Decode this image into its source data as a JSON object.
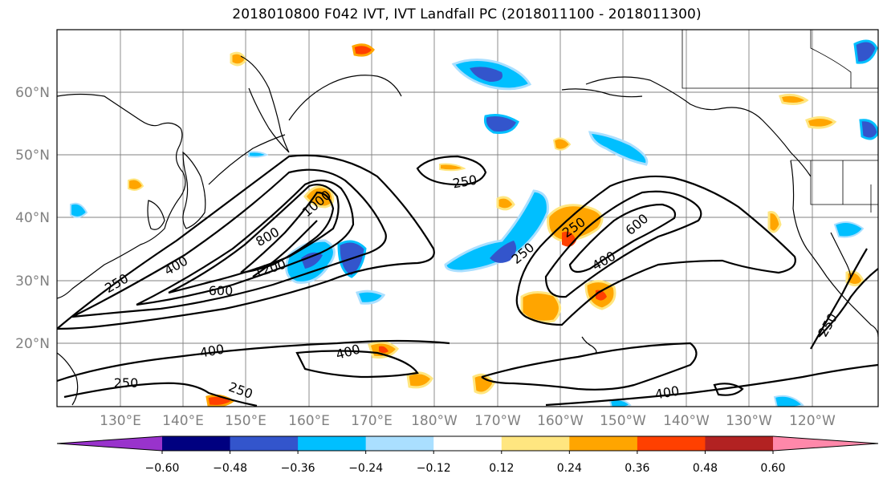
{
  "title": "2018010800 F042 IVT, IVT Landfall PC (2018011100 - 2018011300)",
  "lat_labels": [
    "60°N",
    "50°N",
    "40°N",
    "30°N",
    "20°N"
  ],
  "lon_labels": [
    "130°E",
    "140°E",
    "150°E",
    "160°E",
    "170°E",
    "180°W",
    "170°W",
    "160°W",
    "150°W",
    "140°W",
    "130°W",
    "120°W"
  ],
  "colorbar": {
    "ticks": [
      "−0.60",
      "−0.48",
      "−0.36",
      "−0.24",
      "−0.12",
      "0.12",
      "0.24",
      "0.36",
      "0.48",
      "0.60"
    ],
    "colors": [
      "#9933cc",
      "#000080",
      "#3355cc",
      "#00bfff",
      "#aadfff",
      "#ffffff",
      "#ffe680",
      "#ffa500",
      "#ff4000",
      "#b22222",
      "#ff88aa"
    ]
  },
  "ivt_contour_labels": [
    "250",
    "400",
    "600",
    "800",
    "1000",
    "1200",
    "250",
    "400",
    "600",
    "250",
    "250",
    "400",
    "400",
    "250",
    "250",
    "400",
    "250"
  ],
  "colors": {
    "contour": "#000000",
    "grid": "#808080",
    "coast": "#000000",
    "negative_light": "#00bfff",
    "negative_dark": "#3355cc",
    "positive_light": "#ffe680",
    "positive_mid": "#ffa500",
    "positive_dark": "#ff4000"
  }
}
